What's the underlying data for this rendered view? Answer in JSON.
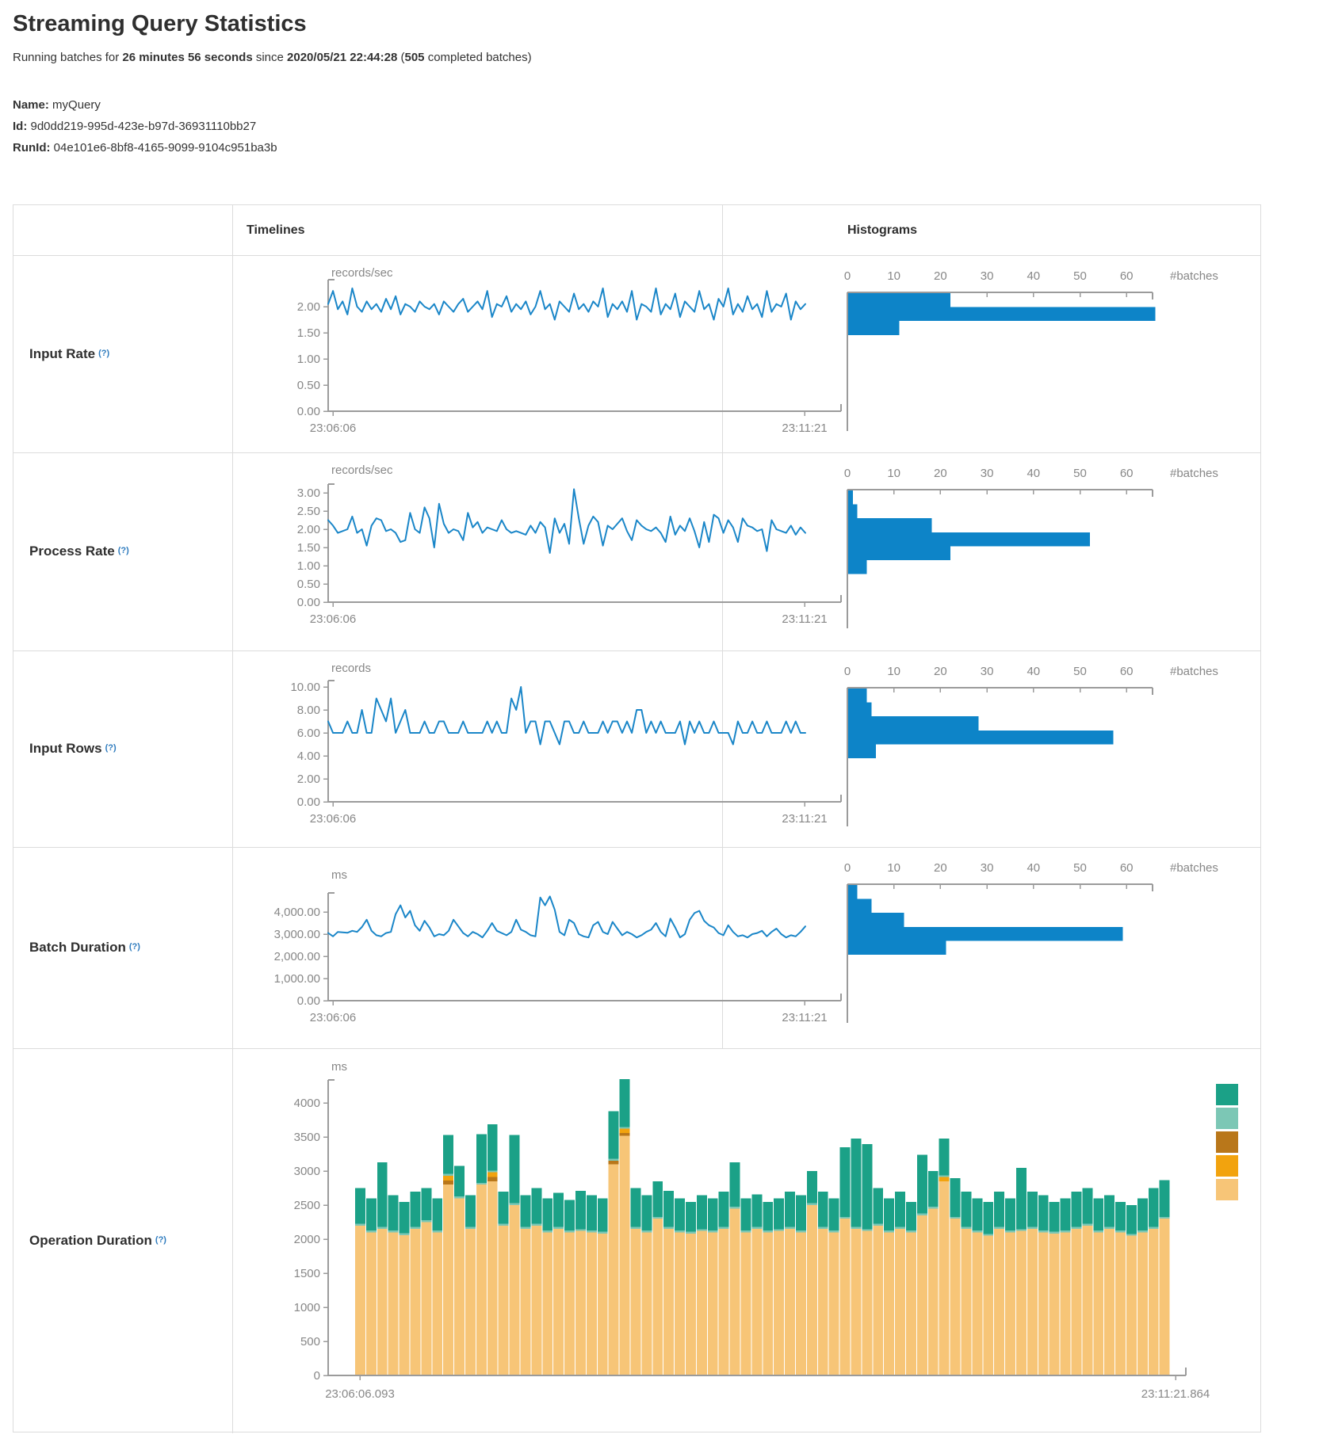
{
  "page": {
    "title": "Streaming Query Statistics"
  },
  "status": {
    "prefix": "Running batches for ",
    "duration": "26 minutes 56 seconds",
    "mid": " since ",
    "start_time": "2020/05/21 22:44:28",
    "paren_open": " (",
    "completed_batches": "505",
    "suffix": " completed batches)"
  },
  "meta": {
    "name_label": "Name:",
    "name": "myQuery",
    "id_label": "Id:",
    "id": "9d0dd219-995d-423e-b97d-36931110bb27",
    "runid_label": "RunId:",
    "runid": "04e101e6-8bf8-4165-9099-9104c951ba3b"
  },
  "columns": {
    "timelines": "Timelines",
    "histograms": "Histograms"
  },
  "help_marker": "(?)",
  "rows": [
    {
      "label": "Input Rate"
    },
    {
      "label": "Process Rate"
    },
    {
      "label": "Input Rows"
    },
    {
      "label": "Batch Duration"
    },
    {
      "label": "Operation Duration"
    }
  ],
  "colors": {
    "line": "#1a86c8",
    "histogram": "#0d84c8",
    "axis": "#9b9b9b",
    "tick_text": "#878787",
    "border": "#dcdcdc",
    "help": "#2e7bbe"
  },
  "chart_data": [
    {
      "id": "input-rate-line",
      "type": "line",
      "row": "Input Rate",
      "title": "records/sec",
      "x_start": "23:06:06",
      "x_end": "23:11:21",
      "y_ticks": [
        2,
        1.5,
        1,
        0.5,
        0
      ],
      "y_tick_labels": [
        "2.00",
        "1.50",
        "1.00",
        "0.50",
        "0.00"
      ],
      "ylim": [
        0,
        2.5
      ],
      "values": [
        2.05,
        2.3,
        1.95,
        2.1,
        1.85,
        2.35,
        2.0,
        1.9,
        2.1,
        1.95,
        2.05,
        1.9,
        2.15,
        1.95,
        2.2,
        1.85,
        2.05,
        2.0,
        1.9,
        2.1,
        2.0,
        1.95,
        2.05,
        1.85,
        2.1,
        2.0,
        1.9,
        2.05,
        2.15,
        1.9,
        2.0,
        2.1,
        1.95,
        2.3,
        1.8,
        2.05,
        2.0,
        2.2,
        1.9,
        2.05,
        1.95,
        2.1,
        1.85,
        2.0,
        2.3,
        1.95,
        2.05,
        1.75,
        2.1,
        2.0,
        1.9,
        2.25,
        1.95,
        2.05,
        1.9,
        2.1,
        2.0,
        2.35,
        1.8,
        2.05,
        1.95,
        2.1,
        1.9,
        2.3,
        1.75,
        2.05,
        2.0,
        1.9,
        2.35,
        1.85,
        2.05,
        1.95,
        2.25,
        1.8,
        2.1,
        2.0,
        1.9,
        2.3,
        1.95,
        2.05,
        1.75,
        2.15,
        2.0,
        2.35,
        1.85,
        2.05,
        1.9,
        2.2,
        1.95,
        2.05,
        1.8,
        2.3,
        1.9,
        2.05,
        2.0,
        2.25,
        1.75,
        2.1,
        1.95,
        2.05
      ]
    },
    {
      "id": "input-rate-hist",
      "type": "bar-horizontal",
      "row": "Input Rate",
      "xlabel": "#batches",
      "x_ticks": [
        0,
        10,
        20,
        30,
        40,
        50,
        60
      ],
      "values": [
        22,
        66,
        11
      ]
    },
    {
      "id": "process-rate-line",
      "type": "line",
      "row": "Process Rate",
      "title": "records/sec",
      "x_start": "23:06:06",
      "x_end": "23:11:21",
      "y_ticks": [
        3,
        2.5,
        2,
        1.5,
        1,
        0.5,
        0
      ],
      "y_tick_labels": [
        "3.00",
        "2.50",
        "2.00",
        "1.50",
        "1.00",
        "0.50",
        "0.00"
      ],
      "ylim": [
        0,
        3.2
      ],
      "values": [
        2.25,
        2.1,
        1.9,
        1.95,
        2.0,
        2.35,
        1.9,
        2.0,
        1.55,
        2.1,
        2.3,
        2.25,
        1.95,
        2.0,
        1.9,
        1.65,
        1.7,
        2.45,
        2.0,
        1.9,
        2.6,
        2.3,
        1.5,
        2.7,
        2.15,
        1.9,
        2.0,
        1.95,
        1.7,
        2.45,
        2.05,
        2.2,
        1.9,
        2.05,
        2.0,
        1.95,
        2.25,
        2.0,
        1.9,
        1.95,
        1.9,
        1.85,
        2.1,
        1.9,
        2.2,
        2.05,
        1.35,
        2.3,
        1.9,
        2.15,
        1.6,
        3.1,
        2.3,
        1.6,
        2.1,
        2.35,
        2.2,
        1.55,
        2.1,
        2.0,
        2.15,
        2.3,
        1.95,
        1.7,
        2.25,
        2.1,
        2.0,
        1.95,
        2.05,
        1.9,
        1.65,
        2.35,
        1.85,
        2.1,
        1.95,
        2.3,
        1.95,
        1.5,
        2.2,
        1.65,
        2.4,
        2.3,
        1.9,
        2.25,
        2.05,
        1.65,
        2.3,
        2.1,
        2.05,
        1.95,
        2.0,
        1.4,
        2.25,
        2.0,
        1.95,
        1.9,
        2.1,
        1.85,
        2.05,
        1.9
      ]
    },
    {
      "id": "process-rate-hist",
      "type": "bar-horizontal",
      "row": "Process Rate",
      "xlabel": "#batches",
      "x_ticks": [
        0,
        10,
        20,
        30,
        40,
        50,
        60
      ],
      "values": [
        1,
        2,
        18,
        52,
        22,
        4
      ]
    },
    {
      "id": "input-rows-line",
      "type": "line",
      "row": "Input Rows",
      "title": "records",
      "x_start": "23:06:06",
      "x_end": "23:11:21",
      "y_ticks": [
        10,
        8,
        6,
        4,
        2,
        0
      ],
      "y_tick_labels": [
        "10.00",
        "8.00",
        "6.00",
        "4.00",
        "2.00",
        "0.00"
      ],
      "ylim": [
        0,
        10.5
      ],
      "values": [
        7,
        6,
        6,
        6,
        7,
        6,
        6,
        8,
        6,
        6,
        9,
        8,
        7,
        9,
        6,
        7,
        8,
        6,
        6,
        6,
        7,
        6,
        6,
        7,
        7,
        6,
        6,
        6,
        7,
        6,
        6,
        6,
        6,
        7,
        6,
        7,
        6,
        6,
        9,
        8,
        10,
        6,
        7,
        7,
        5,
        7,
        7,
        6,
        5,
        7,
        7,
        6,
        6,
        7,
        6,
        6,
        6,
        7,
        6,
        7,
        7,
        6,
        7,
        6,
        8,
        8,
        6,
        7,
        6,
        7,
        6,
        6,
        6,
        7,
        5,
        7,
        6,
        7,
        6,
        6,
        7,
        6,
        6,
        6,
        5,
        7,
        6,
        6,
        7,
        6,
        6,
        7,
        6,
        6,
        6,
        7,
        6,
        7,
        6,
        6
      ]
    },
    {
      "id": "input-rows-hist",
      "type": "bar-horizontal",
      "row": "Input Rows",
      "xlabel": "#batches",
      "x_ticks": [
        0,
        10,
        20,
        30,
        40,
        50,
        60
      ],
      "values": [
        4,
        5,
        28,
        57,
        6
      ]
    },
    {
      "id": "batch-duration-line",
      "type": "line",
      "row": "Batch Duration",
      "title": "ms",
      "x_start": "23:06:06",
      "x_end": "23:11:21",
      "y_ticks": [
        4000,
        3000,
        2000,
        1000,
        0
      ],
      "y_tick_labels": [
        "4,000.00",
        "3,000.00",
        "2,000.00",
        "1,000.00",
        "0.00"
      ],
      "ylim": [
        0,
        4800
      ],
      "values": [
        3050,
        2900,
        3100,
        3080,
        3060,
        3150,
        3100,
        3320,
        3650,
        3150,
        2950,
        2900,
        3050,
        3100,
        3900,
        4300,
        3750,
        4050,
        3400,
        3150,
        3600,
        3300,
        2900,
        3000,
        2950,
        3150,
        3650,
        3350,
        3050,
        2900,
        3100,
        3000,
        2850,
        3150,
        3500,
        3150,
        3050,
        2950,
        3100,
        3650,
        3200,
        3100,
        2950,
        2900,
        4650,
        4300,
        4700,
        4100,
        3100,
        2950,
        3650,
        3500,
        3000,
        2900,
        2850,
        3400,
        3550,
        3100,
        3000,
        3550,
        3250,
        2950,
        3100,
        3000,
        2850,
        2950,
        3100,
        3200,
        3500,
        3100,
        2900,
        3700,
        3300,
        2850,
        3000,
        3650,
        3950,
        4050,
        3600,
        3400,
        3300,
        3050,
        2950,
        3400,
        3100,
        2900,
        2950,
        2850,
        3000,
        3050,
        3150,
        2900,
        3100,
        3250,
        3000,
        2850,
        2950,
        2900,
        3100,
        3350
      ]
    },
    {
      "id": "batch-duration-hist",
      "type": "bar-horizontal",
      "row": "Batch Duration",
      "xlabel": "#batches",
      "x_ticks": [
        0,
        10,
        20,
        30,
        40,
        50,
        60
      ],
      "values": [
        2,
        5,
        12,
        59,
        21
      ]
    },
    {
      "id": "operation-duration-stack",
      "type": "area",
      "row": "Operation Duration",
      "title": "ms",
      "x_start": "23:06:06.093",
      "x_end": "23:11:21.864",
      "y_ticks": [
        4000,
        3500,
        3000,
        2500,
        2000,
        1500,
        1000,
        500,
        0
      ],
      "y_tick_labels": [
        "4000",
        "3500",
        "3000",
        "2500",
        "2000",
        "1500",
        "1000",
        "500",
        "0"
      ],
      "ylim": [
        0,
        4350
      ],
      "legend_colors": [
        "#1ba187",
        "#7cc7b5",
        "#b9771a",
        "#f2a30e",
        "#f7c577"
      ],
      "series": [
        {
          "color": "#f7c577",
          "values": [
            2200,
            2100,
            2150,
            2100,
            2060,
            2150,
            2250,
            2100,
            2800,
            2600,
            2150,
            2800,
            2850,
            2200,
            2500,
            2150,
            2200,
            2100,
            2150,
            2100,
            2120,
            2100,
            2080,
            3100,
            3520,
            2150,
            2100,
            2300,
            2150,
            2100,
            2080,
            2120,
            2100,
            2150,
            2450,
            2100,
            2150,
            2100,
            2120,
            2150,
            2100,
            2500,
            2150,
            2100,
            2300,
            2150,
            2120,
            2200,
            2100,
            2150,
            2100,
            2350,
            2450,
            2850,
            2300,
            2150,
            2100,
            2050,
            2150,
            2100,
            2120,
            2150,
            2100,
            2080,
            2100,
            2150,
            2200,
            2100,
            2150,
            2100,
            2050,
            2100,
            2150,
            2300
          ]
        },
        {
          "color": "#b9771a",
          "values": [
            0,
            0,
            0,
            0,
            0,
            0,
            0,
            0,
            60,
            0,
            0,
            0,
            60,
            0,
            0,
            0,
            0,
            0,
            0,
            0,
            0,
            0,
            0,
            50,
            40,
            0,
            0,
            0,
            0,
            0,
            0,
            0,
            0,
            0,
            0,
            0,
            0,
            0,
            0,
            0,
            0,
            0,
            0,
            0,
            0,
            0,
            0,
            0,
            0,
            0,
            0,
            0,
            0,
            0,
            0,
            0,
            0,
            0,
            0,
            0,
            0,
            0,
            0,
            0,
            0,
            0,
            0,
            0,
            0,
            0,
            0,
            0,
            0,
            0
          ]
        },
        {
          "color": "#f2a30e",
          "values": [
            0,
            0,
            0,
            0,
            0,
            0,
            0,
            0,
            70,
            0,
            0,
            0,
            70,
            0,
            0,
            0,
            0,
            0,
            0,
            0,
            0,
            0,
            0,
            0,
            60,
            0,
            0,
            0,
            0,
            0,
            0,
            0,
            0,
            0,
            0,
            0,
            0,
            0,
            0,
            0,
            0,
            0,
            0,
            0,
            0,
            0,
            0,
            0,
            0,
            0,
            0,
            0,
            0,
            60,
            0,
            0,
            0,
            0,
            0,
            0,
            0,
            0,
            0,
            0,
            0,
            0,
            0,
            0,
            0,
            0,
            0,
            0,
            0,
            0
          ]
        },
        {
          "color": "#7cc7b5",
          "const": 28
        },
        {
          "color": "#1ba187",
          "values": [
            520,
            470,
            950,
            520,
            460,
            520,
            470,
            470,
            570,
            450,
            470,
            710,
            680,
            470,
            1000,
            470,
            520,
            470,
            500,
            450,
            560,
            520,
            490,
            700,
            700,
            570,
            520,
            520,
            530,
            470,
            440,
            500,
            470,
            520,
            650,
            470,
            480,
            420,
            450,
            520,
            520,
            470,
            520,
            470,
            1020,
            1300,
            1250,
            520,
            470,
            520,
            420,
            860,
            520,
            540,
            570,
            520,
            470,
            470,
            520,
            470,
            900,
            520,
            520,
            440,
            470,
            520,
            520,
            470,
            470,
            420,
            420,
            470,
            570,
            540
          ]
        }
      ]
    }
  ]
}
